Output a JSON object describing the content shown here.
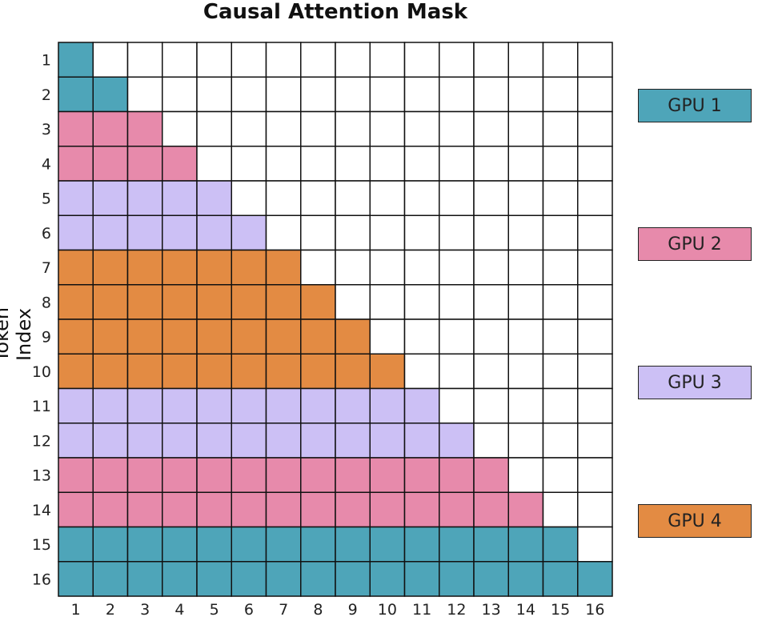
{
  "chart_data": {
    "type": "heatmap",
    "title": "Causal Attention Mask",
    "ylabel": "Token Index",
    "xlabel": "",
    "x_ticks": [
      "1",
      "2",
      "3",
      "4",
      "5",
      "6",
      "7",
      "8",
      "9",
      "10",
      "11",
      "12",
      "13",
      "14",
      "15",
      "16"
    ],
    "y_ticks": [
      "1",
      "2",
      "3",
      "4",
      "5",
      "6",
      "7",
      "8",
      "9",
      "10",
      "11",
      "12",
      "13",
      "14",
      "15",
      "16"
    ],
    "mask": "lower-triangular (row i attends to columns 1..i)",
    "row_gpu": [
      1,
      1,
      2,
      2,
      3,
      3,
      4,
      4,
      4,
      4,
      3,
      3,
      2,
      2,
      1,
      1
    ],
    "legend": [
      {
        "label": "GPU 1",
        "color": "#4ea5b9"
      },
      {
        "label": "GPU 2",
        "color": "#e78aab"
      },
      {
        "label": "GPU 3",
        "color": "#ccc0f5"
      },
      {
        "label": "GPU 4",
        "color": "#e38b43"
      }
    ],
    "empty_color": "#ffffff"
  }
}
